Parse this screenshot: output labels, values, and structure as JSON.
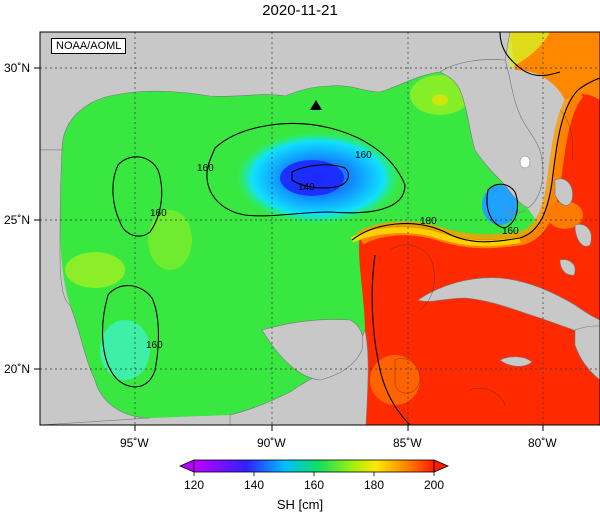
{
  "title": "2020-11-21",
  "credit": "NOAA/AOML",
  "colorbar": {
    "label": "SH [cm]",
    "ticks": [
      "120",
      "140",
      "160",
      "180",
      "200"
    ],
    "colors": [
      "#b400ff",
      "#3c28ff",
      "#00c8ff",
      "#10e060",
      "#90f018",
      "#ffee00",
      "#ff9a00",
      "#ff2a00"
    ]
  },
  "axes": {
    "lon_ticks": [
      "95˚W",
      "90˚W",
      "85˚W",
      "80˚W"
    ],
    "lat_ticks": [
      "30˚N",
      "25˚N",
      "20˚N"
    ]
  },
  "contour_labels": [
    "160",
    "160",
    "140",
    "160",
    "160",
    "180",
    "160"
  ],
  "marker": {
    "shape": "triangle",
    "color": "#000000"
  }
}
